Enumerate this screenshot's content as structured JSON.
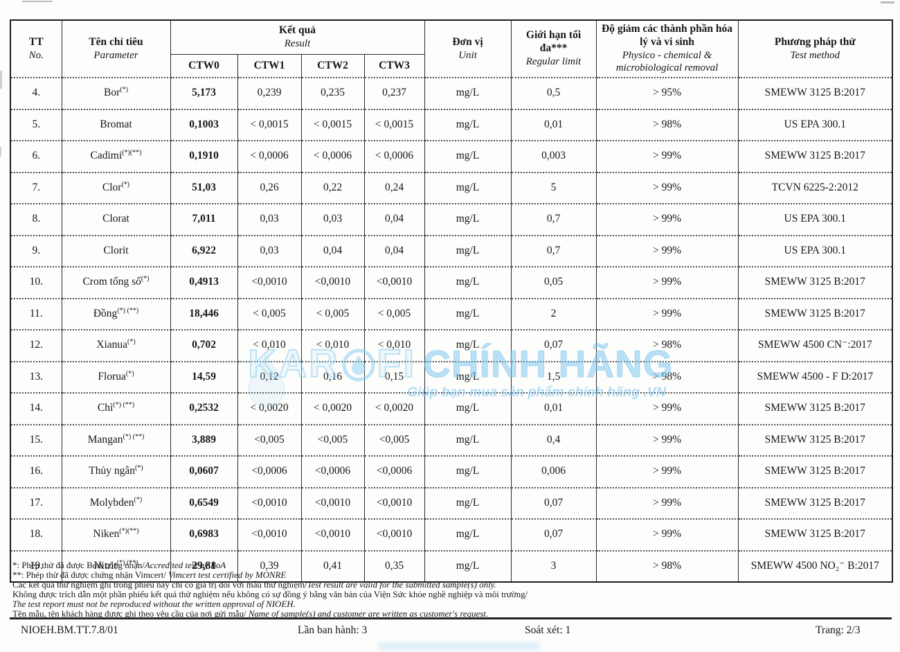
{
  "table": {
    "header": {
      "tt_vi": "TT",
      "tt_en": "No.",
      "param_vi": "Tên chỉ tiêu",
      "param_en": "Parameter",
      "result_vi": "Kết quả",
      "result_en": "Result",
      "result_cols": [
        "CTW0",
        "CTW1",
        "CTW2",
        "CTW3"
      ],
      "unit_vi": "Đơn vị",
      "unit_en": "Unit",
      "limit_vi": "Giới hạn tối đa***",
      "limit_en": "Regular limit",
      "removal_vi": "Độ giảm các thành phần hóa lý và vi sinh",
      "removal_en": "Physico - chemical & microbiological removal",
      "method_vi": "Phương pháp thử",
      "method_en": "Test method"
    },
    "rows": [
      {
        "no": "4.",
        "param": "Bor",
        "sup": "(*)",
        "ctw0": "5,173",
        "ctw1": "0,239",
        "ctw2": "0,235",
        "ctw3": "0,237",
        "unit": "mg/L",
        "limit": "0,5",
        "removal": "> 95%",
        "method": "SMEWW 3125 B:2017"
      },
      {
        "no": "5.",
        "param": "Bromat",
        "sup": "",
        "ctw0": "0,1003",
        "ctw1": "< 0,0015",
        "ctw2": "< 0,0015",
        "ctw3": "< 0,0015",
        "unit": "mg/L",
        "limit": "0,01",
        "removal": "> 98%",
        "method": "US EPA 300.1"
      },
      {
        "no": "6.",
        "param": "Cadimi",
        "sup": "(*)(**)",
        "ctw0": "0,1910",
        "ctw1": "< 0,0006",
        "ctw2": "< 0,0006",
        "ctw3": "< 0,0006",
        "unit": "mg/L",
        "limit": "0,003",
        "removal": "> 99%",
        "method": "SMEWW 3125 B:2017"
      },
      {
        "no": "7.",
        "param": "Clor",
        "sup": "(*)",
        "ctw0": "51,03",
        "ctw1": "0,26",
        "ctw2": "0,22",
        "ctw3": "0,24",
        "unit": "mg/L",
        "limit": "5",
        "removal": "> 99%",
        "method": "TCVN 6225-2:2012"
      },
      {
        "no": "8.",
        "param": "Clorat",
        "sup": "",
        "ctw0": "7,011",
        "ctw1": "0,03",
        "ctw2": "0,03",
        "ctw3": "0,04",
        "unit": "mg/L",
        "limit": "0,7",
        "removal": "> 99%",
        "method": "US EPA 300.1"
      },
      {
        "no": "9.",
        "param": "Clorit",
        "sup": "",
        "ctw0": "6,922",
        "ctw1": "0,03",
        "ctw2": "0,04",
        "ctw3": "0,04",
        "unit": "mg/L",
        "limit": "0,7",
        "removal": "> 99%",
        "method": "US EPA 300.1"
      },
      {
        "no": "10.",
        "param": "Crom tổng số",
        "sup": "(*)",
        "ctw0": "0,4913",
        "ctw1": "<0,0010",
        "ctw2": "<0,0010",
        "ctw3": "<0,0010",
        "unit": "mg/L",
        "limit": "0,05",
        "removal": "> 99%",
        "method": "SMEWW 3125 B:2017"
      },
      {
        "no": "11.",
        "param": "Đồng",
        "sup": "(*) (**)",
        "ctw0": "18,446",
        "ctw1": "< 0,005",
        "ctw2": "< 0,005",
        "ctw3": "< 0,005",
        "unit": "mg/L",
        "limit": "2",
        "removal": "> 99%",
        "method": "SMEWW 3125 B:2017"
      },
      {
        "no": "12.",
        "param": "Xianua",
        "sup": "(*)",
        "ctw0": "0,702",
        "ctw1": "< 0,010",
        "ctw2": "< 0,010",
        "ctw3": "< 0,010",
        "unit": "mg/L",
        "limit": "0,07",
        "removal": "> 98%",
        "method": "SMEWW 4500 CN⁻:2017"
      },
      {
        "no": "13.",
        "param": "Florua",
        "sup": "(*)",
        "ctw0": "14,59",
        "ctw1": "0,12",
        "ctw2": "0,16",
        "ctw3": "0,15",
        "unit": "mg/L",
        "limit": "1,5",
        "removal": "> 98%",
        "method": "SMEWW 4500 - F D:2017"
      },
      {
        "no": "14.",
        "param": "Chì",
        "sup": "(*) (**)",
        "ctw0": "0,2532",
        "ctw1": "< 0,0020",
        "ctw2": "< 0,0020",
        "ctw3": "< 0,0020",
        "unit": "mg/L",
        "limit": "0,01",
        "removal": "> 99%",
        "method": "SMEWW 3125 B:2017"
      },
      {
        "no": "15.",
        "param": "Mangan",
        "sup": "(*) (**)",
        "ctw0": "3,889",
        "ctw1": "<0,005",
        "ctw2": "<0,005",
        "ctw3": "<0,005",
        "unit": "mg/L",
        "limit": "0,4",
        "removal": "> 99%",
        "method": "SMEWW 3125 B:2017"
      },
      {
        "no": "16.",
        "param": "Thủy ngân",
        "sup": "(*)",
        "ctw0": "0,0607",
        "ctw1": "<0,0006",
        "ctw2": "<0,0006",
        "ctw3": "<0,0006",
        "unit": "mg/L",
        "limit": "0,006",
        "removal": "> 99%",
        "method": "SMEWW 3125 B:2017"
      },
      {
        "no": "17.",
        "param": "Molybden",
        "sup": "(*)",
        "ctw0": "0,6549",
        "ctw1": "<0,0010",
        "ctw2": "<0,0010",
        "ctw3": "<0,0010",
        "unit": "mg/L",
        "limit": "0,07",
        "removal": "> 99%",
        "method": "SMEWW 3125 B:2017"
      },
      {
        "no": "18.",
        "param": "Niken",
        "sup": "(*)(**)",
        "ctw0": "0,6983",
        "ctw1": "<0,0010",
        "ctw2": "<0,0010",
        "ctw3": "<0,0010",
        "unit": "mg/L",
        "limit": "0,07",
        "removal": "> 99%",
        "method": "SMEWW 3125 B:2017"
      },
      {
        "no": "19.",
        "param": "Nitrit",
        "sup": "(*) (**)",
        "ctw0": "29,81",
        "ctw1": "0,39",
        "ctw2": "0,41",
        "ctw3": "0,35",
        "unit": "mg/L",
        "limit": "3",
        "removal": "> 98%",
        "method": "SMEWW 4500 NO₂⁻ B:2017"
      }
    ]
  },
  "watermark": {
    "brand_part1": "KAR",
    "brand_part2": "FI",
    "brand_part3": "CHÍNH HÃNG",
    "tagline": "Giúp bạn mua sản phẩm chính hãng .VN",
    "color": "#8ecdee"
  },
  "footnotes": [
    [
      {
        "t": "*: Phép thử đã được BoA công nhận/",
        "i": false
      },
      {
        "t": "Accredited test by BoA",
        "i": true
      }
    ],
    [
      {
        "t": "**: Phép thử đã được chứng nhận Vimcert/ ",
        "i": false
      },
      {
        "t": "Vimcert test certified by MONRE",
        "i": true
      }
    ],
    [
      {
        "t": "Các kết quả thử nghiệm ghi trong phiếu này chỉ có giá trị đối với mẫu thử nghiệm/",
        "i": false
      },
      {
        "t": "Test result are valid for the submitted sample(s) only.",
        "i": true
      }
    ],
    [
      {
        "t": "Không được trích dẫn một phần phiếu kết quả thử nghiệm nếu không có sự đồng ý bằng văn bản của Viện Sức khỏe nghề nghiệp và môi trường/",
        "i": false
      }
    ],
    [
      {
        "t": "The test report must not be reproduced without the written approval of NIOEH.",
        "i": true
      }
    ],
    [
      {
        "t": "Tên mẫu, tên khách hàng được ghi theo yêu cầu của nơi gửi mẫu/ ",
        "i": false
      },
      {
        "t": "Name of sample(s) and customer are written as customer's request.",
        "i": true
      }
    ]
  ],
  "footer": {
    "code": "NIOEH.BM.TT.7.8/01",
    "issue": "Lần ban hành: 3",
    "review": "Soát xét: 1",
    "page": "Trang: 2/3"
  }
}
